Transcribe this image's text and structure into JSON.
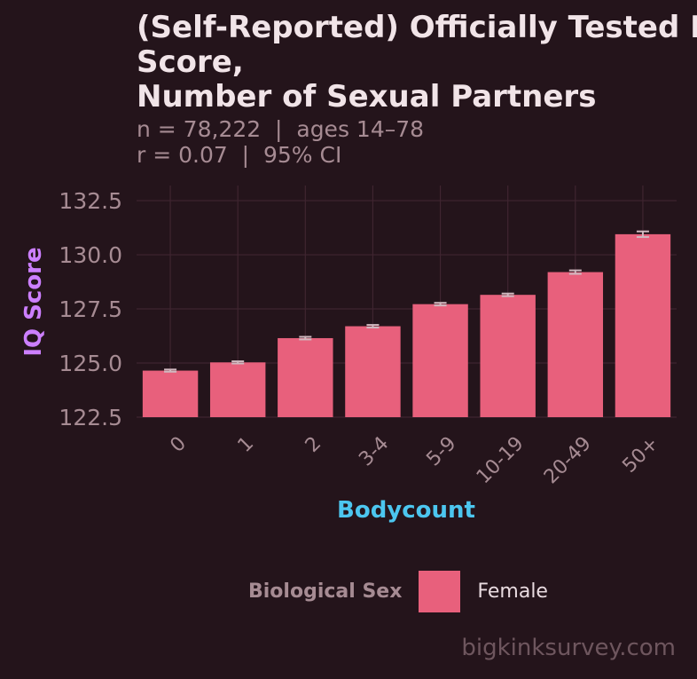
{
  "colors": {
    "background": "#24141b",
    "grid": "#3f2530",
    "bar": "#e8607c",
    "errorbar": "#d0b8bf",
    "ylabel": "#cc7fff",
    "xlabel": "#4cc6ef",
    "ticks": "#a68b93"
  },
  "chart_data": {
    "type": "bar",
    "title": "(Self-Reported) Officially Tested IQ\nScore,\nNumber of Sexual Partners",
    "subtitle": "n = 78,222  |  ages 14–78\nr = 0.07  |  95% CI",
    "xlabel": "Bodycount",
    "ylabel": "IQ Score",
    "categories": [
      "0",
      "1",
      "2",
      "3-4",
      "5-9",
      "10-19",
      "20-49",
      "50+"
    ],
    "series": [
      {
        "name": "Female",
        "values": [
          124.65,
          125.03,
          126.15,
          126.7,
          127.72,
          128.15,
          129.2,
          130.95
        ],
        "ci_low": [
          124.6,
          124.98,
          126.09,
          126.64,
          127.66,
          128.09,
          129.12,
          130.82
        ],
        "ci_high": [
          124.7,
          125.08,
          126.21,
          126.76,
          127.78,
          128.21,
          129.28,
          131.08
        ]
      }
    ],
    "yticks": [
      "122.5",
      "125.0",
      "127.5",
      "130.0",
      "132.5"
    ],
    "ylim": [
      122.5,
      133.2
    ],
    "grid": true,
    "legend": {
      "title": "Biological Sex",
      "entries": [
        "Female"
      ],
      "placement": "bottom"
    }
  },
  "watermark": "bigkinksurvey.com"
}
